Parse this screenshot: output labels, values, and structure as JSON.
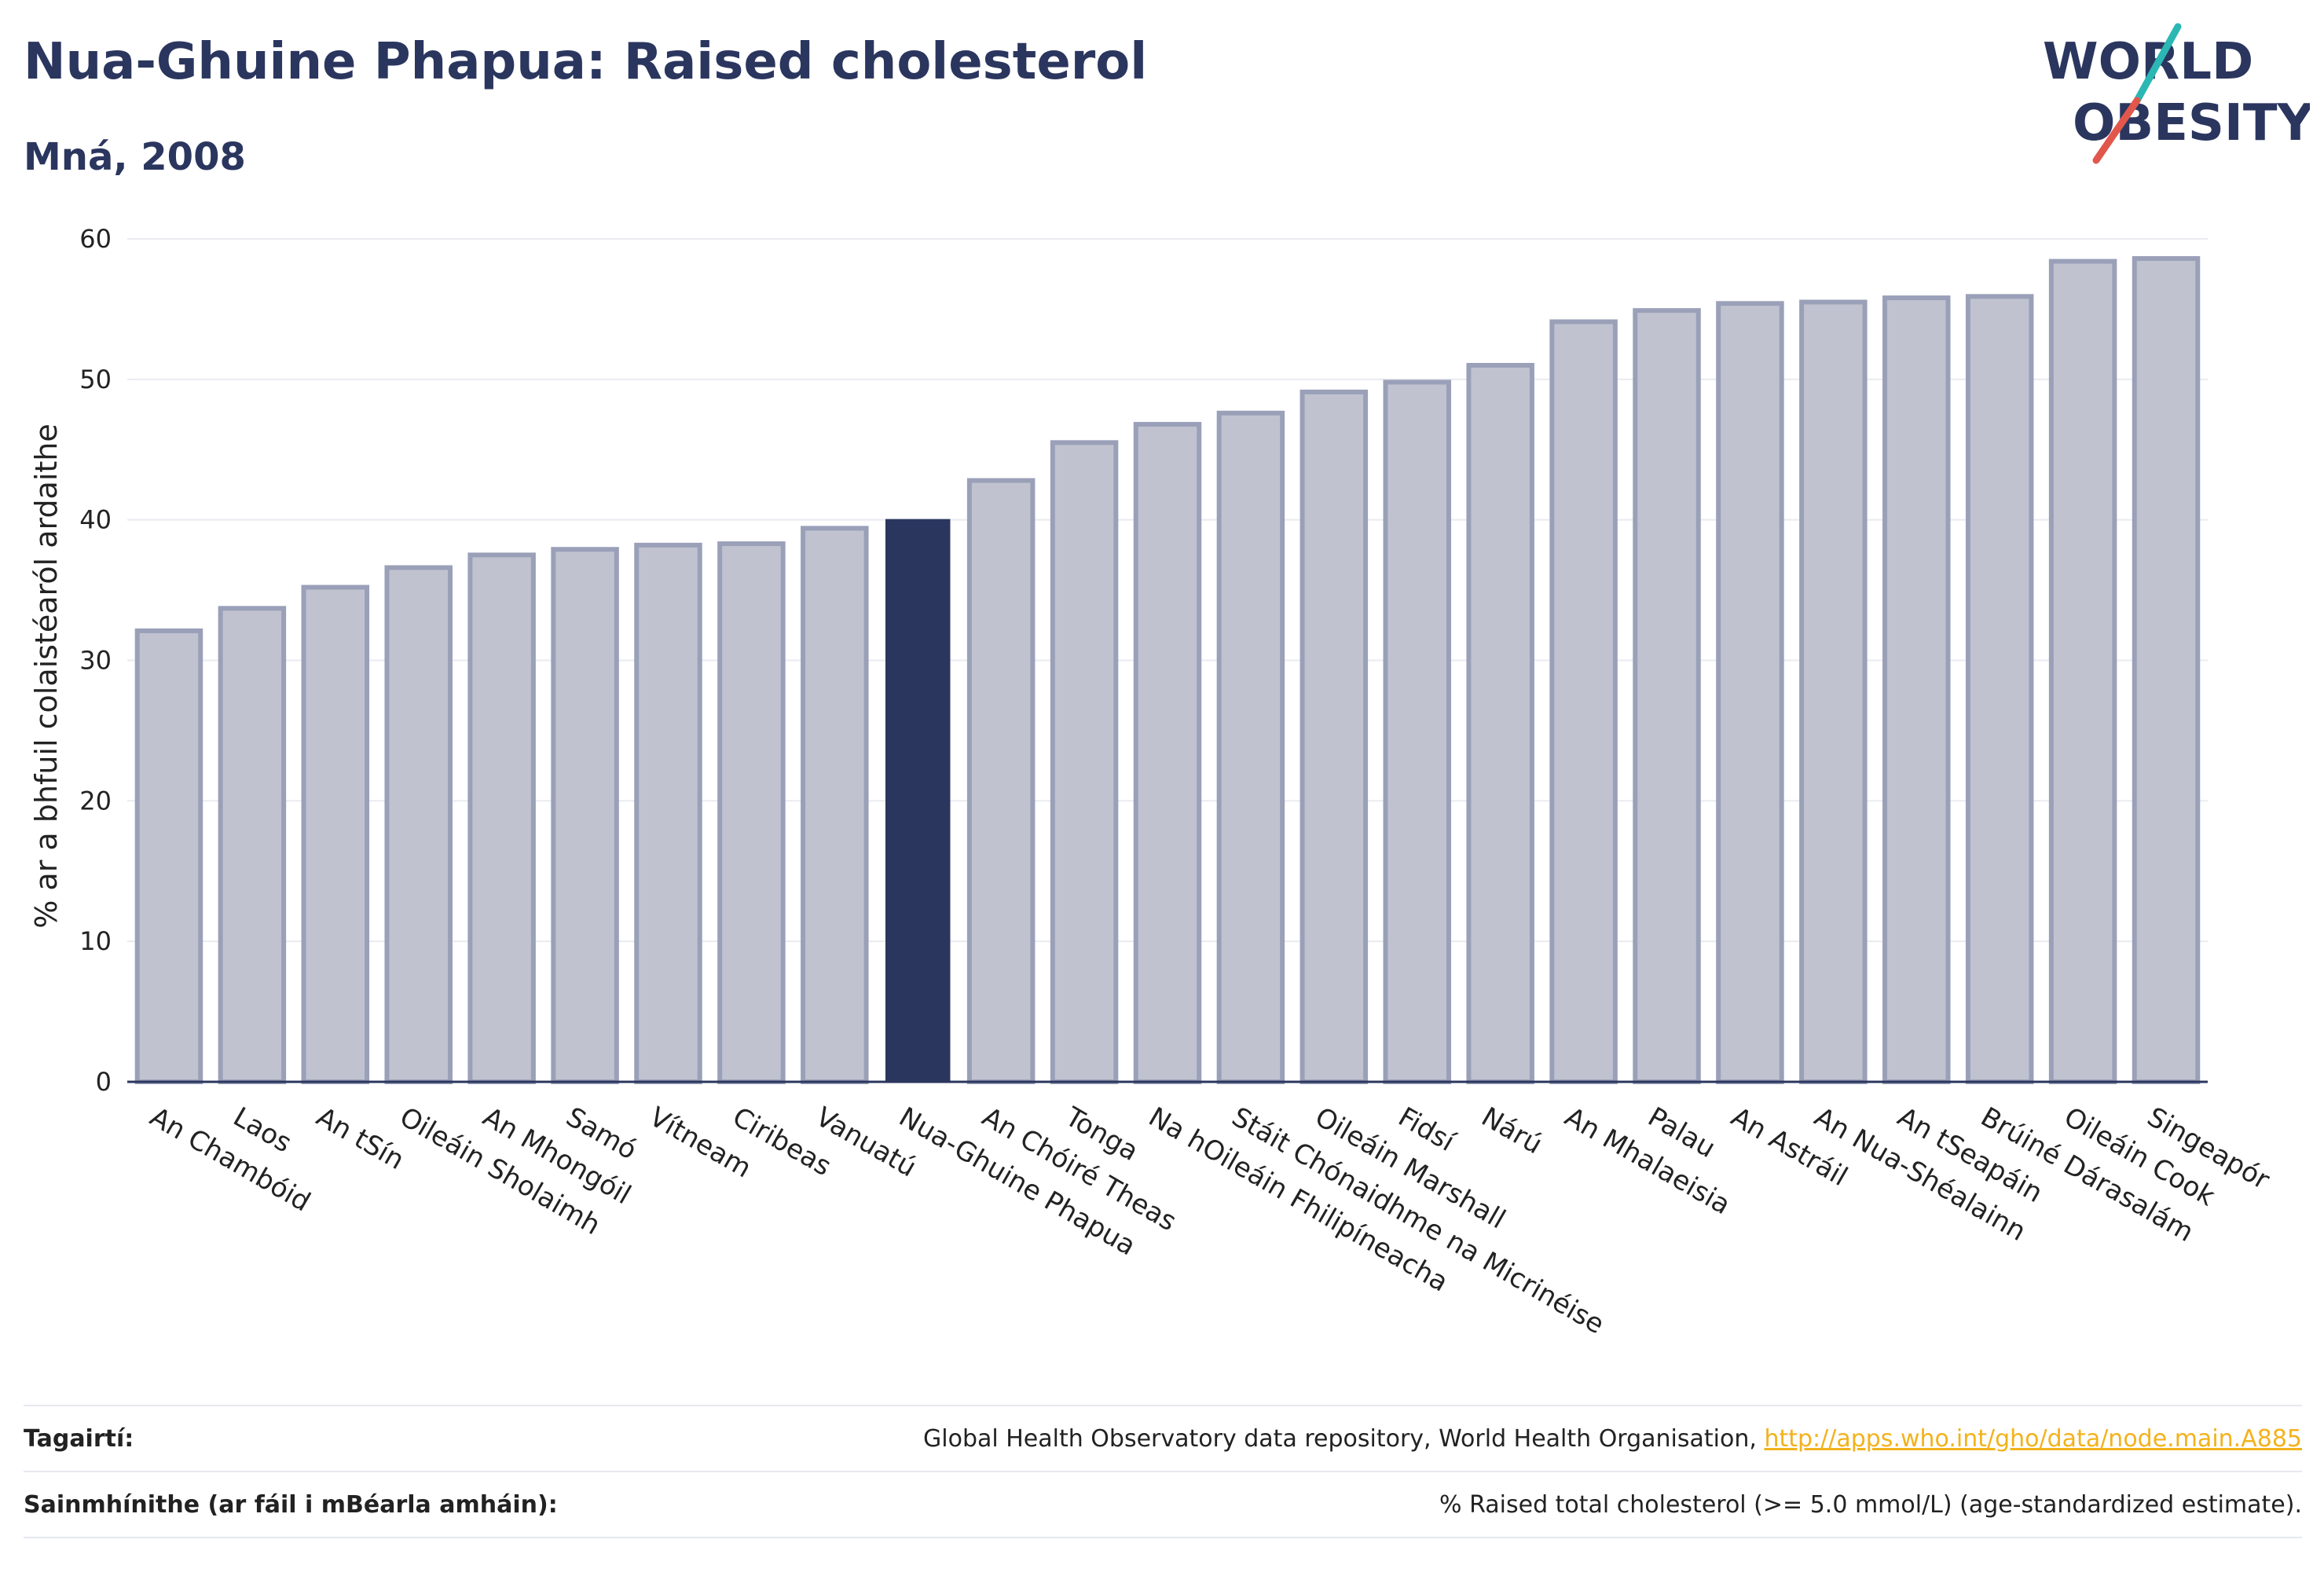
{
  "header": {
    "title": "Nua-Ghuine Phapua: Raised cholesterol",
    "subtitle": "Mná, 2008"
  },
  "logo": {
    "line1": "WORLD",
    "line2": "OBESITY",
    "text_color": "#2b365f",
    "slash_colors": [
      "#2bb7b3",
      "#e2574c"
    ]
  },
  "footer": {
    "references_label": "Tagairtí:",
    "references_text": "Global Health Observatory data repository, World Health Organisation, ",
    "references_link": "http://apps.who.int/gho/data/node.main.A885",
    "definitions_label": "Sainmhínithe (ar fáil i mBéarla amháin):",
    "definitions_text": "% Raised total cholesterol (>= 5.0 mmol/L) (age-standardized estimate)."
  },
  "chart_data": {
    "type": "bar",
    "title": "Nua-Ghuine Phapua: Raised cholesterol",
    "subtitle": "Mná, 2008",
    "xlabel": "",
    "ylabel": "% ar a bhfuil colaistéaról ardaithe",
    "ylim": [
      0,
      60
    ],
    "yticks": [
      0,
      10,
      20,
      30,
      40,
      50,
      60
    ],
    "grid": true,
    "highlight": "Nua-Ghuine Phapua",
    "colors": {
      "bar_fill": "#c0c3cf",
      "bar_border": "#9aa0b8",
      "highlight": "#2b365f",
      "grid": "#e9ebf0",
      "axis": "#2b365f"
    },
    "categories": [
      "An Chambóid",
      "Laos",
      "An tSín",
      "Oileáin Sholaimh",
      "An Mhongóil",
      "Samó",
      "Vítneam",
      "Ciribeas",
      "Vanuatú",
      "Nua-Ghuine Phapua",
      "An Chóiré Theas",
      "Tonga",
      "Na hOileáin Fhilipíneacha",
      "Stáit Chónaidhme na Micrinéise",
      "Oileáin Marshall",
      "Fidsí",
      "Nárú",
      "An Mhalaeisia",
      "Palau",
      "An Astráil",
      "An Nua-Shéalainn",
      "An tSeapáin",
      "Brúiné Dárasalám",
      "Oileáin Cook",
      "Singeapór"
    ],
    "values": [
      32.1,
      33.7,
      35.2,
      36.6,
      37.5,
      37.9,
      38.2,
      38.3,
      39.4,
      40.0,
      42.8,
      45.5,
      46.8,
      47.6,
      49.1,
      49.8,
      51.0,
      54.1,
      54.9,
      55.4,
      55.5,
      55.8,
      55.9,
      58.4,
      58.6
    ]
  }
}
